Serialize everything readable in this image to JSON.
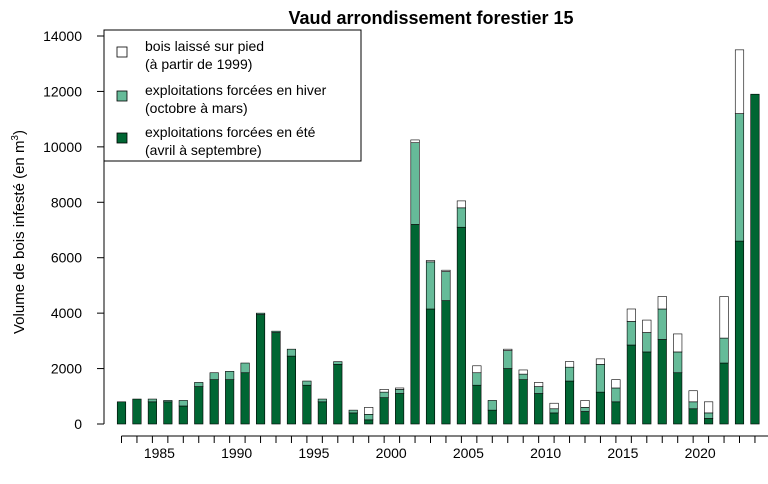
{
  "chart_data": {
    "type": "bar",
    "stacked": true,
    "title": "Vaud arrondissement forestier 15",
    "ylabel": "Volume de bois infesté (en m",
    "ylabel_superscript": "3",
    "ylabel_close": ")",
    "xlabel": "",
    "ylim": [
      0,
      14000
    ],
    "yticks": [
      "0",
      "2000",
      "4000",
      "6000",
      "8000",
      "10000",
      "12000",
      "14000"
    ],
    "xtick_labels": [
      "1985",
      "1990",
      "1995",
      "2000",
      "2005",
      "2010",
      "2015",
      "2020"
    ],
    "grid": false,
    "legend_position": "top-left",
    "categories": [
      1983,
      1984,
      1985,
      1986,
      1987,
      1988,
      1989,
      1990,
      1991,
      1992,
      1993,
      1994,
      1995,
      1996,
      1997,
      1998,
      1999,
      2000,
      2001,
      2002,
      2003,
      2004,
      2005,
      2006,
      2007,
      2008,
      2009,
      2010,
      2011,
      2012,
      2013,
      2014,
      2015,
      2016,
      2017,
      2018,
      2019,
      2020,
      2021,
      2022,
      2023,
      2024
    ],
    "series": [
      {
        "name": "exploitations forcées en été",
        "name_line2": "(avril à septembre)",
        "color": "#006633",
        "values": [
          800,
          900,
          800,
          800,
          650,
          1350,
          1600,
          1600,
          1850,
          3950,
          3300,
          2450,
          1400,
          800,
          2150,
          400,
          150,
          950,
          1100,
          7200,
          4150,
          4450,
          7100,
          1400,
          500,
          2000,
          1600,
          1100,
          400,
          1550,
          450,
          1150,
          800,
          2850,
          2600,
          3050,
          1850,
          550,
          200,
          2200,
          6600,
          11900
        ]
      },
      {
        "name": "exploitations forcées en hiver",
        "name_line2": "(octobre à mars)",
        "color": "#66BB99",
        "values": [
          0,
          0,
          100,
          50,
          200,
          150,
          250,
          300,
          350,
          50,
          50,
          250,
          150,
          100,
          100,
          100,
          200,
          200,
          150,
          2950,
          1700,
          1050,
          700,
          450,
          350,
          650,
          200,
          250,
          150,
          500,
          150,
          1000,
          500,
          850,
          700,
          1100,
          750,
          250,
          200,
          900,
          4600,
          0
        ]
      },
      {
        "name": "bois laissé sur pied",
        "name_line2": "(à partir de 1999)",
        "color": "#ffffff",
        "values": [
          0,
          0,
          0,
          0,
          0,
          0,
          0,
          0,
          0,
          0,
          0,
          0,
          0,
          0,
          0,
          0,
          250,
          100,
          50,
          100,
          50,
          50,
          250,
          250,
          0,
          50,
          150,
          150,
          200,
          200,
          250,
          200,
          300,
          450,
          450,
          450,
          650,
          400,
          400,
          1500,
          2300,
          0
        ]
      }
    ]
  }
}
